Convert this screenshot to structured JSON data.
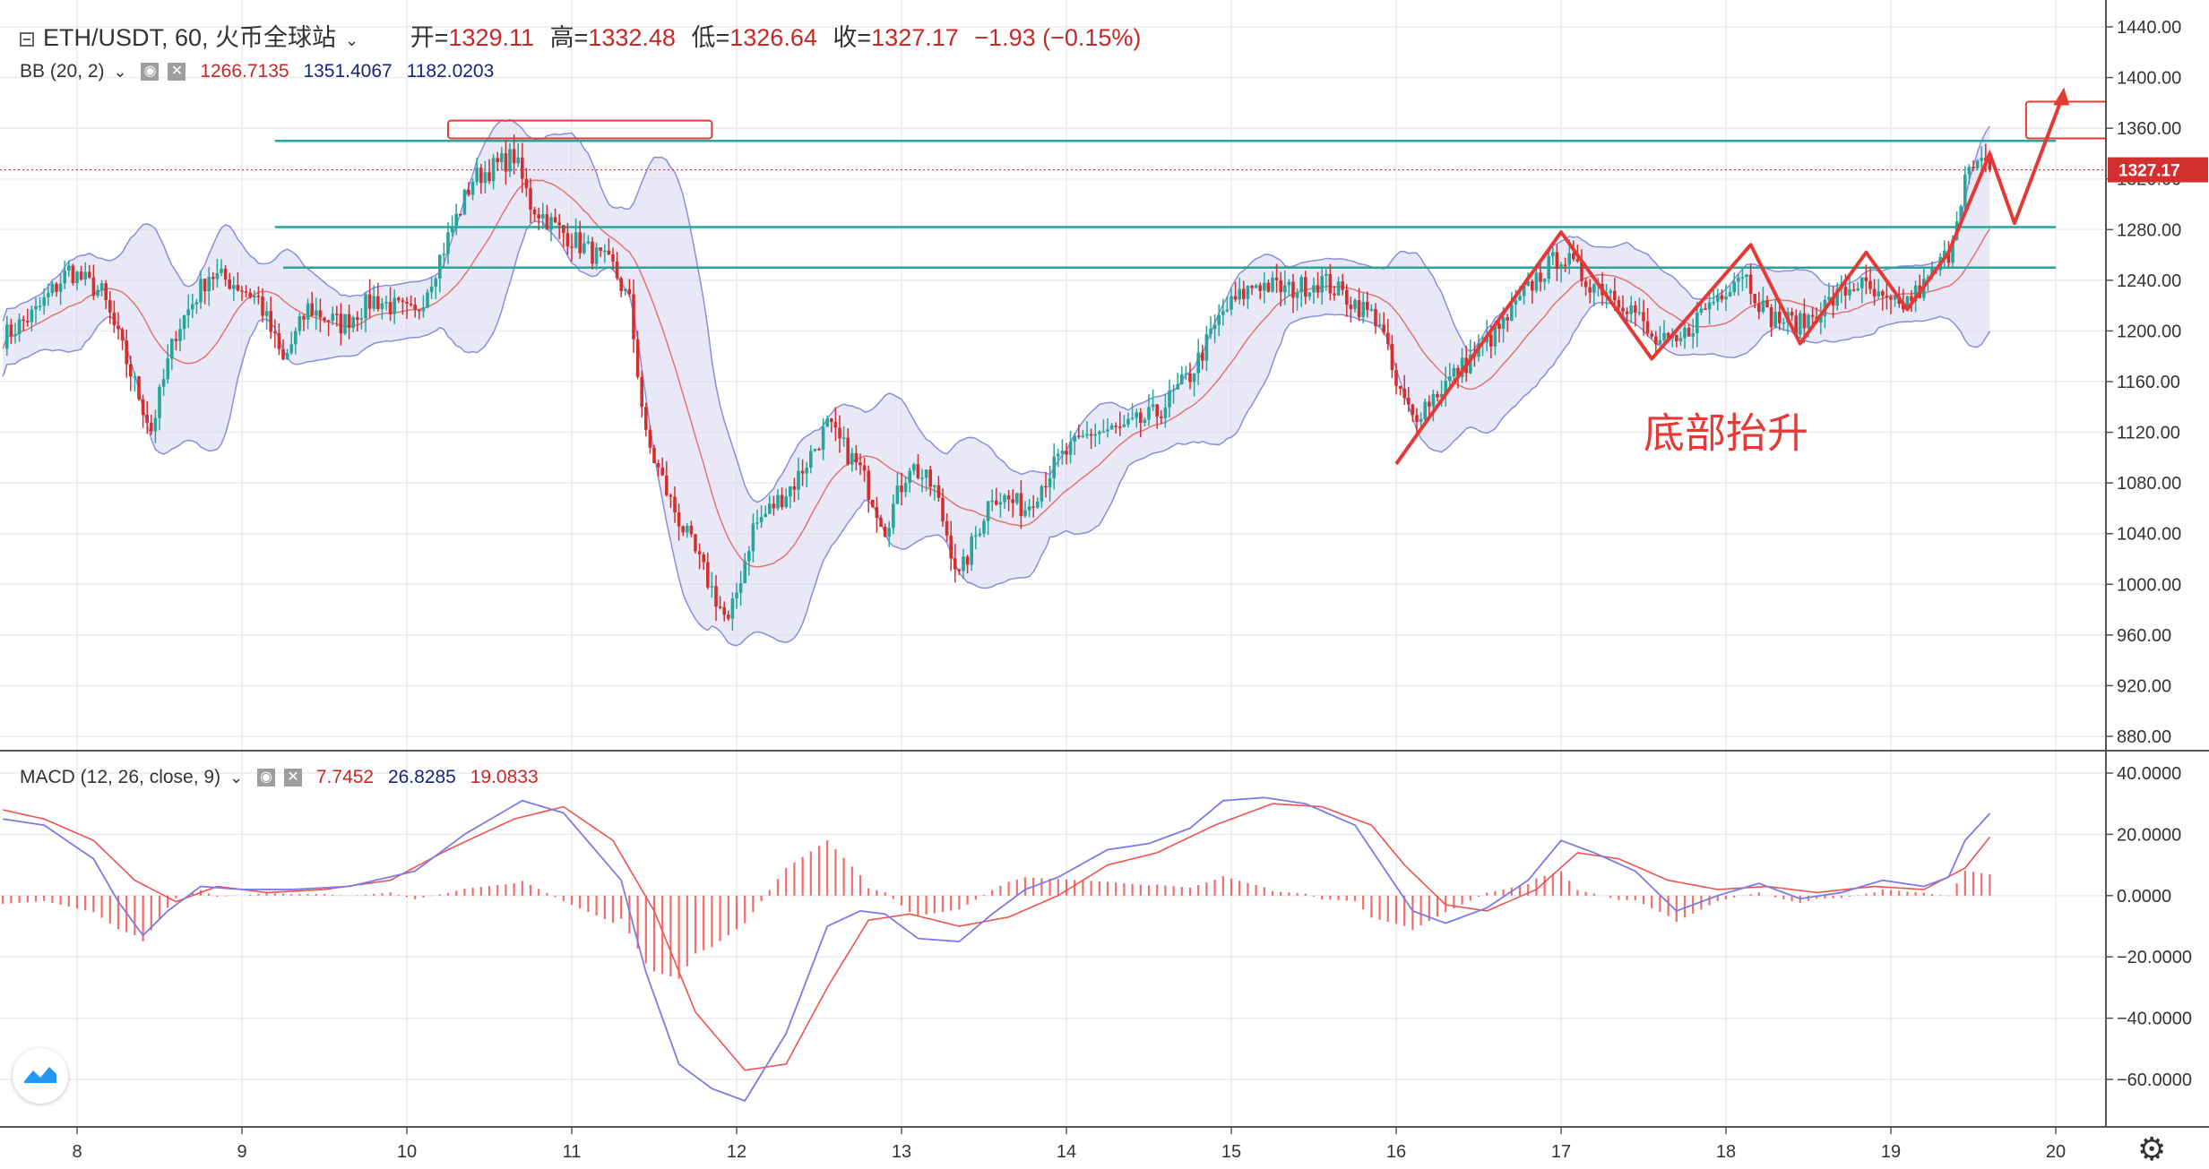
{
  "header": {
    "symbol": "ETH/USDT, 60, 火币全球站",
    "open_label": "开=",
    "open": "1329.11",
    "high_label": "高=",
    "high": "1332.48",
    "low_label": "低=",
    "low": "1326.64",
    "close_label": "收=",
    "close": "1327.17",
    "change": "−1.93 (−0.15%)"
  },
  "bb_legend": {
    "label": "BB (20, 2)",
    "basis": "1266.7135",
    "upper": "1351.4067",
    "lower": "1182.0203"
  },
  "macd_legend": {
    "label": "MACD (12, 26, close, 9)",
    "hist": "7.7452",
    "macd": "26.8285",
    "signal": "19.0833"
  },
  "annotation": "底部抬升",
  "price_label": "1327.17",
  "colors": {
    "up": "#26a69a",
    "down": "#d32f2f",
    "band_fill": "#d8d8f0",
    "band_line": "#8c8ce0",
    "basis": "#e57373",
    "hline": "#26a69a",
    "annotation": "#e53935",
    "macd_line": "#7b7be8",
    "signal_line": "#ef5350"
  },
  "icons": [
    "collapse-icon",
    "chevron-down-icon",
    "eye-icon",
    "close-icon",
    "tradingview-logo-icon",
    "gear-icon"
  ],
  "chart_data": [
    {
      "type": "candlestick",
      "title": "ETH/USDT, 60, 火币全球站",
      "x_ticks": [
        "8",
        "9",
        "10",
        "11",
        "12",
        "13",
        "14",
        "15",
        "16",
        "17",
        "18",
        "19",
        "20"
      ],
      "y_ticks": [
        "1440.00",
        "1400.00",
        "1360.00",
        "1320.00",
        "1280.00",
        "1240.00",
        "1200.00",
        "1160.00",
        "1120.00",
        "1080.00",
        "1040.00",
        "1000.00",
        "960.00",
        "920.00",
        "880.00"
      ],
      "ylim": [
        870,
        1452
      ],
      "close_anchors": [
        [
          7.55,
          1195
        ],
        [
          7.75,
          1215
        ],
        [
          7.95,
          1248
        ],
        [
          8.15,
          1230
        ],
        [
          8.35,
          1158
        ],
        [
          8.45,
          1122
        ],
        [
          8.6,
          1200
        ],
        [
          8.8,
          1245
        ],
        [
          8.95,
          1238
        ],
        [
          9.1,
          1225
        ],
        [
          9.25,
          1175
        ],
        [
          9.4,
          1218
        ],
        [
          9.6,
          1205
        ],
        [
          9.8,
          1225
        ],
        [
          10.05,
          1212
        ],
        [
          10.2,
          1258
        ],
        [
          10.4,
          1320
        ],
        [
          10.65,
          1338
        ],
        [
          10.75,
          1300
        ],
        [
          10.9,
          1282
        ],
        [
          11.05,
          1268
        ],
        [
          11.25,
          1250
        ],
        [
          11.35,
          1222
        ],
        [
          11.45,
          1115
        ],
        [
          11.6,
          1065
        ],
        [
          11.8,
          1010
        ],
        [
          11.95,
          968
        ],
        [
          12.1,
          1045
        ],
        [
          12.35,
          1080
        ],
        [
          12.55,
          1125
        ],
        [
          12.75,
          1090
        ],
        [
          12.9,
          1045
        ],
        [
          13.05,
          1095
        ],
        [
          13.2,
          1075
        ],
        [
          13.35,
          1005
        ],
        [
          13.55,
          1072
        ],
        [
          13.75,
          1060
        ],
        [
          13.95,
          1098
        ],
        [
          14.15,
          1120
        ],
        [
          14.35,
          1122
        ],
        [
          14.55,
          1135
        ],
        [
          14.75,
          1165
        ],
        [
          14.95,
          1215
        ],
        [
          15.15,
          1238
        ],
        [
          15.35,
          1232
        ],
        [
          15.55,
          1240
        ],
        [
          15.75,
          1222
        ],
        [
          15.9,
          1208
        ],
        [
          16.0,
          1155
        ],
        [
          16.1,
          1132
        ],
        [
          16.25,
          1152
        ],
        [
          16.45,
          1178
        ],
        [
          16.65,
          1205
        ],
        [
          16.85,
          1242
        ],
        [
          17.0,
          1260
        ],
        [
          17.15,
          1240
        ],
        [
          17.3,
          1232
        ],
        [
          17.45,
          1215
        ],
        [
          17.55,
          1192
        ],
        [
          17.7,
          1188
        ],
        [
          17.85,
          1215
        ],
        [
          18.0,
          1235
        ],
        [
          18.1,
          1248
        ],
        [
          18.25,
          1212
        ],
        [
          18.45,
          1205
        ],
        [
          18.6,
          1220
        ],
        [
          18.8,
          1238
        ],
        [
          18.95,
          1222
        ],
        [
          19.05,
          1218
        ],
        [
          19.2,
          1235
        ],
        [
          19.35,
          1262
        ],
        [
          19.45,
          1322
        ],
        [
          19.55,
          1330
        ],
        [
          19.6,
          1327
        ]
      ],
      "horizontal_levels": [
        1350,
        1282,
        1250
      ],
      "resistance_boxes": [
        {
          "x": [
            10.25,
            11.85
          ],
          "y": [
            1352,
            1366
          ]
        },
        {
          "x": [
            19.82,
            20.9
          ],
          "y": [
            1352,
            1381
          ]
        }
      ],
      "annotation_text": "底部抬升",
      "zigzag_arrow_path": [
        [
          16.0,
          1095
        ],
        [
          17.0,
          1278
        ],
        [
          17.55,
          1178
        ],
        [
          18.15,
          1268
        ],
        [
          18.45,
          1190
        ],
        [
          18.85,
          1262
        ],
        [
          19.1,
          1217
        ],
        [
          19.35,
          1262
        ],
        [
          19.6,
          1340
        ],
        [
          19.75,
          1285
        ],
        [
          20.05,
          1388
        ]
      ],
      "bollinger": {
        "period": 20,
        "multiplier": 2,
        "basis": 1266.7135,
        "upper": 1351.4067,
        "lower": 1182.0203
      },
      "last_price": 1327.17
    },
    {
      "type": "line",
      "title": "MACD (12, 26, close, 9)",
      "y_ticks": [
        "40.0000",
        "20.0000",
        "0.0000",
        "−20.0000",
        "−40.0000",
        "−60.0000"
      ],
      "ylim": [
        -75,
        42
      ],
      "series": [
        {
          "name": "MACD",
          "last": 26.8285,
          "anchors": [
            [
              7.55,
              25
            ],
            [
              7.8,
              23
            ],
            [
              8.1,
              12
            ],
            [
              8.25,
              -2
            ],
            [
              8.4,
              -13
            ],
            [
              8.55,
              -5
            ],
            [
              8.75,
              3
            ],
            [
              9.0,
              2
            ],
            [
              9.3,
              2
            ],
            [
              9.65,
              3
            ],
            [
              10.05,
              8
            ],
            [
              10.35,
              20
            ],
            [
              10.7,
              31
            ],
            [
              10.95,
              27
            ],
            [
              11.3,
              5
            ],
            [
              11.45,
              -25
            ],
            [
              11.65,
              -55
            ],
            [
              11.85,
              -63
            ],
            [
              12.05,
              -67
            ],
            [
              12.3,
              -45
            ],
            [
              12.55,
              -10
            ],
            [
              12.75,
              -5
            ],
            [
              12.9,
              -6
            ],
            [
              13.1,
              -14
            ],
            [
              13.35,
              -15
            ],
            [
              13.55,
              -6
            ],
            [
              13.75,
              2
            ],
            [
              13.95,
              6
            ],
            [
              14.25,
              15
            ],
            [
              14.5,
              17
            ],
            [
              14.75,
              22
            ],
            [
              14.95,
              31
            ],
            [
              15.2,
              32
            ],
            [
              15.45,
              30
            ],
            [
              15.75,
              23
            ],
            [
              15.95,
              7
            ],
            [
              16.1,
              -5
            ],
            [
              16.3,
              -9
            ],
            [
              16.55,
              -4
            ],
            [
              16.8,
              5
            ],
            [
              17.0,
              18
            ],
            [
              17.2,
              14
            ],
            [
              17.45,
              8
            ],
            [
              17.7,
              -5
            ],
            [
              17.95,
              0
            ],
            [
              18.2,
              4
            ],
            [
              18.45,
              -1
            ],
            [
              18.7,
              1
            ],
            [
              18.95,
              5
            ],
            [
              19.2,
              3
            ],
            [
              19.35,
              6
            ],
            [
              19.45,
              18
            ],
            [
              19.6,
              26.8
            ]
          ]
        },
        {
          "name": "Signal",
          "last": 19.0833,
          "anchors": [
            [
              7.55,
              28
            ],
            [
              7.8,
              25
            ],
            [
              8.1,
              18
            ],
            [
              8.35,
              5
            ],
            [
              8.6,
              -2
            ],
            [
              8.85,
              3
            ],
            [
              9.15,
              1
            ],
            [
              9.5,
              2
            ],
            [
              9.9,
              5
            ],
            [
              10.25,
              15
            ],
            [
              10.65,
              25
            ],
            [
              10.95,
              29
            ],
            [
              11.25,
              18
            ],
            [
              11.5,
              -5
            ],
            [
              11.75,
              -38
            ],
            [
              12.05,
              -57
            ],
            [
              12.3,
              -55
            ],
            [
              12.55,
              -30
            ],
            [
              12.8,
              -8
            ],
            [
              13.05,
              -6
            ],
            [
              13.35,
              -10
            ],
            [
              13.65,
              -7
            ],
            [
              13.95,
              0
            ],
            [
              14.25,
              10
            ],
            [
              14.55,
              14
            ],
            [
              14.9,
              23
            ],
            [
              15.25,
              30
            ],
            [
              15.55,
              29
            ],
            [
              15.85,
              23
            ],
            [
              16.05,
              10
            ],
            [
              16.3,
              -3
            ],
            [
              16.55,
              -5
            ],
            [
              16.85,
              2
            ],
            [
              17.1,
              14
            ],
            [
              17.35,
              12
            ],
            [
              17.65,
              5
            ],
            [
              17.95,
              2
            ],
            [
              18.25,
              3
            ],
            [
              18.55,
              1
            ],
            [
              18.9,
              3
            ],
            [
              19.2,
              2
            ],
            [
              19.45,
              9
            ],
            [
              19.6,
              19.1
            ]
          ]
        }
      ],
      "histogram_last": 7.7452
    }
  ]
}
